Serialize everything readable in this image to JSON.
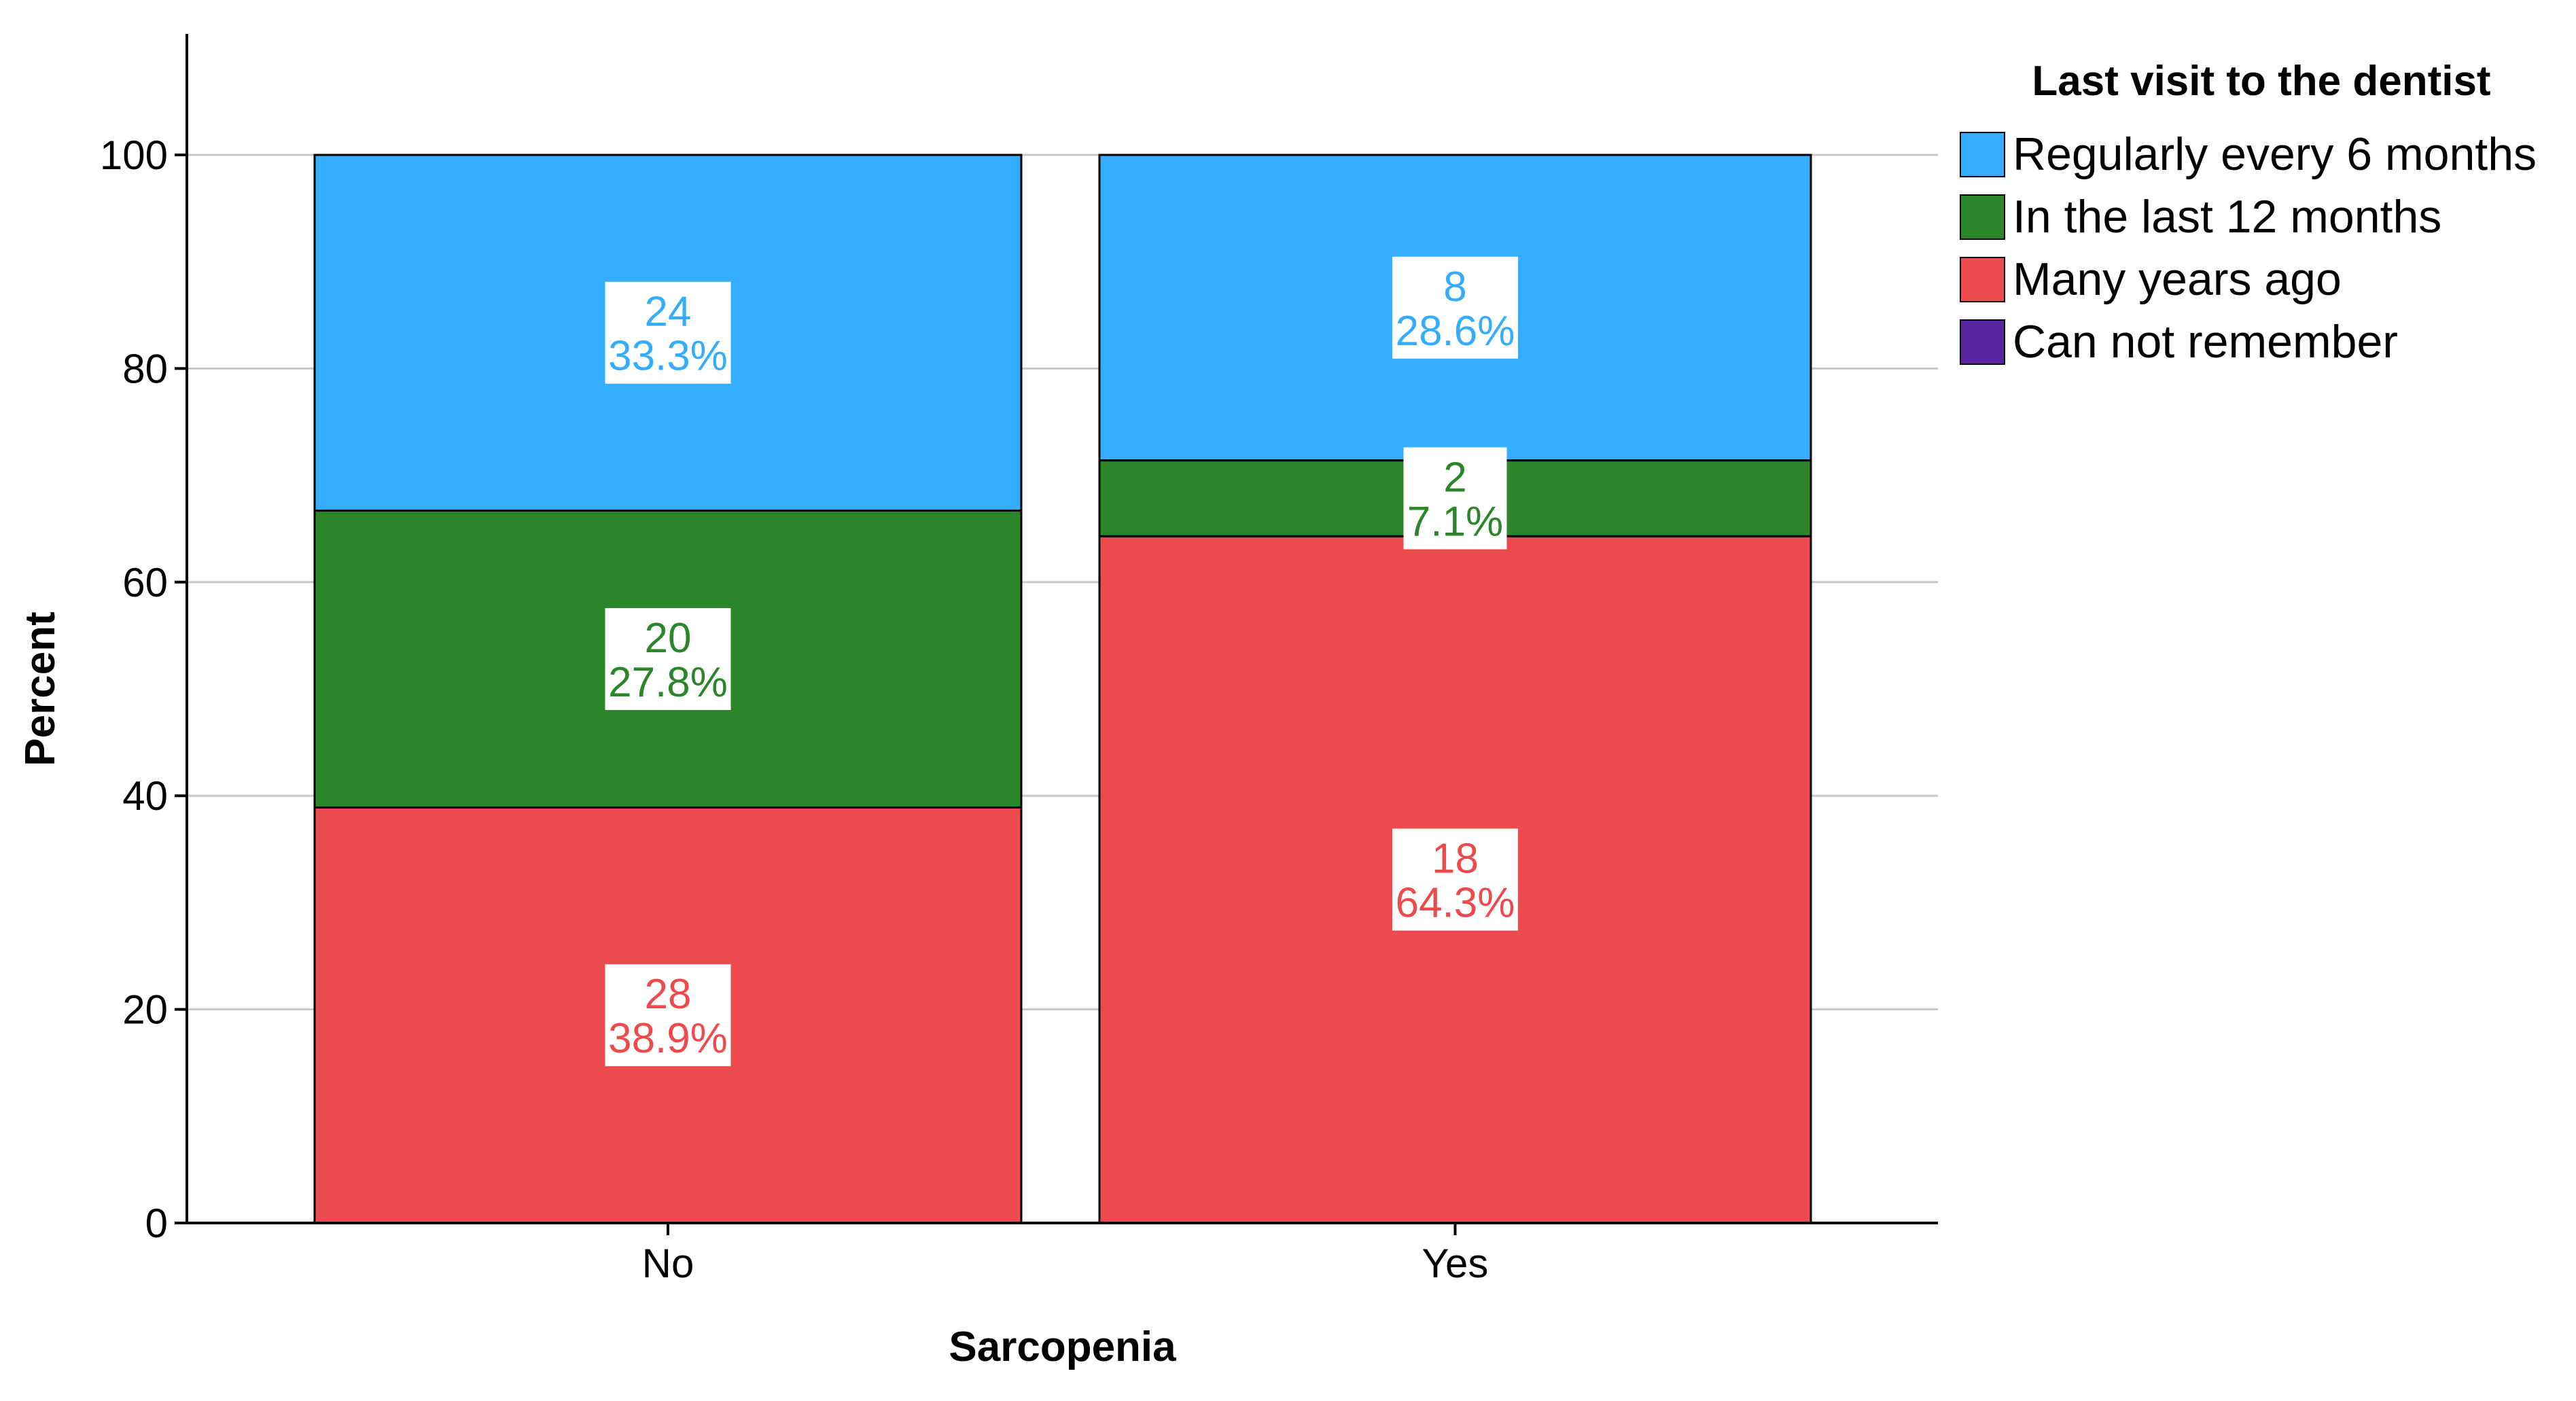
{
  "chart_data": {
    "type": "bar",
    "stacked": true,
    "xlabel": "Sarcopenia",
    "ylabel": "Percent",
    "ylim": [
      0,
      110
    ],
    "yticks": [
      0,
      20,
      40,
      60,
      80,
      100
    ],
    "grid": true,
    "categories": [
      "No",
      "Yes"
    ],
    "legend": {
      "title": "Last visit to the dentist",
      "position": "right"
    },
    "series": [
      {
        "name": "Many years ago",
        "color": "#ec4b4d",
        "values": [
          38.9,
          64.3
        ],
        "counts": [
          "28",
          "18"
        ],
        "percent_labels": [
          "38.9%",
          "64.3%"
        ]
      },
      {
        "name": "In the last 12 months",
        "color": "#2a8629",
        "values": [
          27.8,
          7.1
        ],
        "counts": [
          "20",
          "2"
        ],
        "percent_labels": [
          "27.8%",
          "7.1%"
        ]
      },
      {
        "name": "Regularly every 6 months",
        "color": "#35adff",
        "values": [
          33.3,
          28.6
        ],
        "counts": [
          "24",
          "8"
        ],
        "percent_labels": [
          "33.3%",
          "28.6%"
        ]
      },
      {
        "name": "Can not remember",
        "color": "#5a25a0",
        "values": [
          0,
          0
        ],
        "counts": [
          "",
          ""
        ],
        "percent_labels": [
          "",
          ""
        ]
      }
    ],
    "legend_order": [
      "Regularly every 6 months",
      "In the last 12 months",
      "Many years ago",
      "Can not remember"
    ]
  }
}
